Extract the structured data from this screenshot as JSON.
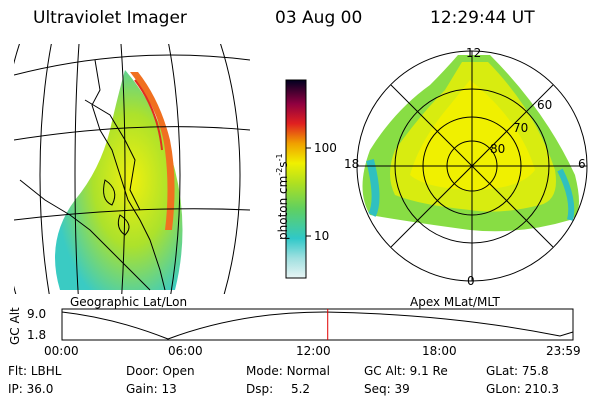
{
  "header": {
    "instrument": "Ultraviolet Imager",
    "date": "03 Aug 00",
    "time": "12:29:44 UT"
  },
  "left_panel": {
    "caption": "Geographic Lat/Lon"
  },
  "colorbar": {
    "unit_main": "photon cm",
    "unit_exp1": "-2",
    "unit_s": "s",
    "unit_exp2": "-1",
    "ticks": [
      "100",
      "10"
    ]
  },
  "right_panel": {
    "caption": "Apex MLat/MLT",
    "mlt_top": "12",
    "mlt_bottom": "0",
    "mlt_left": "18",
    "mlt_right": "6",
    "lat_labels": [
      "60",
      "70",
      "80"
    ]
  },
  "timeline": {
    "ylabel": "GC Alt",
    "y_top": "9.0",
    "y_bottom": "1.8",
    "x_ticks": [
      "00:00",
      "06:00",
      "12:00",
      "18:00",
      "23:59"
    ],
    "marker_fraction": 0.52
  },
  "footer": {
    "filter_label": "Flt:",
    "filter_value": "LBHL",
    "door_label": "Door:",
    "door_value": "Open",
    "mode_label": "Mode:",
    "mode_value": "Normal",
    "gcalt_label": "GC Alt:",
    "gcalt_value": "9.1 Re",
    "glat_label": "GLat:",
    "glat_value": "75.8",
    "ip_label": "IP:",
    "ip_value": "36.0",
    "gain_label": "Gain:",
    "gain_value": "13",
    "dsp_label": "Dsp:",
    "dsp_value": "5.2",
    "seq_label": "Seq:",
    "seq_value": "39",
    "glon_label": "GLon:",
    "glon_value": "210.3"
  }
}
